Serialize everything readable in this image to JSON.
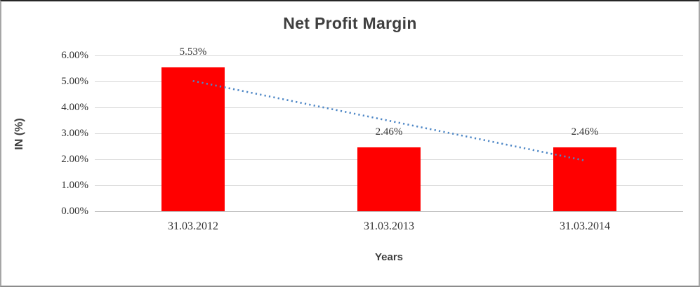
{
  "chart_data": {
    "type": "bar",
    "title": "Net Profit Margin",
    "categories": [
      "31.03.2012",
      "31.03.2013",
      "31.03.2014"
    ],
    "values": [
      5.53,
      2.46,
      2.46
    ],
    "data_labels": [
      "5.53%",
      "2.46%",
      "2.46%"
    ],
    "xlabel": "Years",
    "ylabel": "IN (%)",
    "ylim": [
      0,
      6
    ],
    "ytick_labels": [
      "0.00%",
      "1.00%",
      "2.00%",
      "3.00%",
      "4.00%",
      "5.00%",
      "6.00%"
    ],
    "grid": true,
    "legend_position": "none",
    "bar_color": "#FF0000",
    "trendline": {
      "type": "linear",
      "style": "dotted",
      "color": "#4E87C6",
      "start_value": 5.02,
      "end_value": 1.95
    }
  },
  "colors": {
    "gridline": "#D9D9D9",
    "axis_line": "#BFBFBF",
    "text": "#333333",
    "title": "#3F3F3F",
    "background": "#FFFFFF"
  }
}
